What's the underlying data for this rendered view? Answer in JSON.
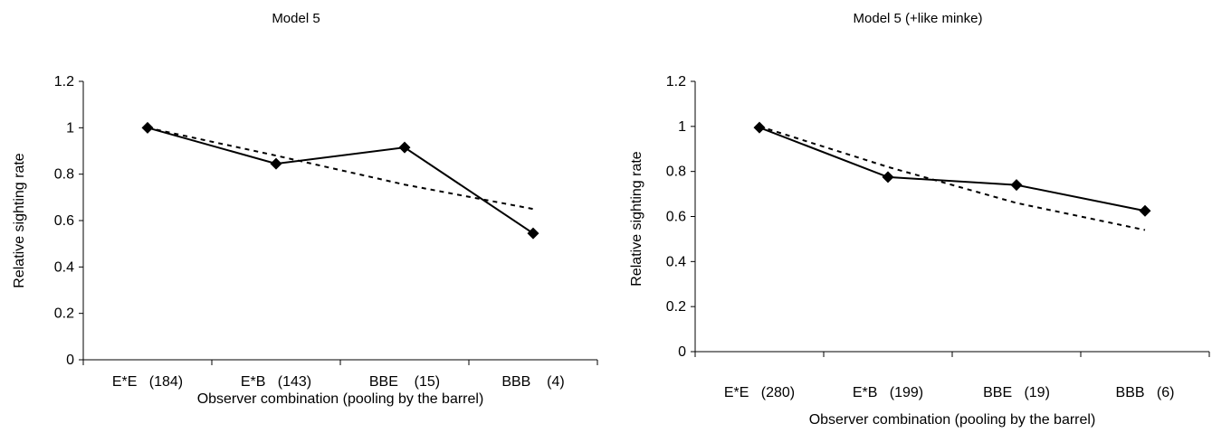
{
  "chart_data": [
    {
      "type": "line",
      "title": "Model 5",
      "xlabel": "Observer combination (pooling by the barrel)",
      "ylabel": "Relative sighting rate",
      "ylim": [
        0,
        1.2
      ],
      "yticks": [
        "0",
        "0.2",
        "0.4",
        "0.6",
        "0.8",
        "1",
        "1.2"
      ],
      "categories": [
        "E*E   (184)",
        "E*B   (143)",
        "BBE    (15)",
        "BBB    (4)"
      ],
      "series": [
        {
          "style": "solid-diamond",
          "values": [
            1.0,
            0.845,
            0.915,
            0.545
          ]
        },
        {
          "style": "dashed",
          "values": [
            1.0,
            0.88,
            0.755,
            0.65
          ]
        }
      ],
      "grid": false,
      "legend": "none"
    },
    {
      "type": "line",
      "title": "Model 5 (+like minke)",
      "xlabel": "Observer combination (pooling by the barrel)",
      "ylabel": "Relative sighting rate",
      "ylim": [
        0,
        1.2
      ],
      "yticks": [
        "0",
        "0.2",
        "0.4",
        "0.6",
        "0.8",
        "1",
        "1.2"
      ],
      "categories": [
        "E*E   (280)",
        "E*B   (199)",
        "BBE   (19)",
        "BBB   (6)"
      ],
      "series": [
        {
          "style": "solid-diamond",
          "values": [
            0.995,
            0.775,
            0.74,
            0.625
          ]
        },
        {
          "style": "dashed",
          "values": [
            1.0,
            0.82,
            0.66,
            0.54
          ]
        }
      ],
      "grid": false,
      "legend": "none"
    }
  ]
}
